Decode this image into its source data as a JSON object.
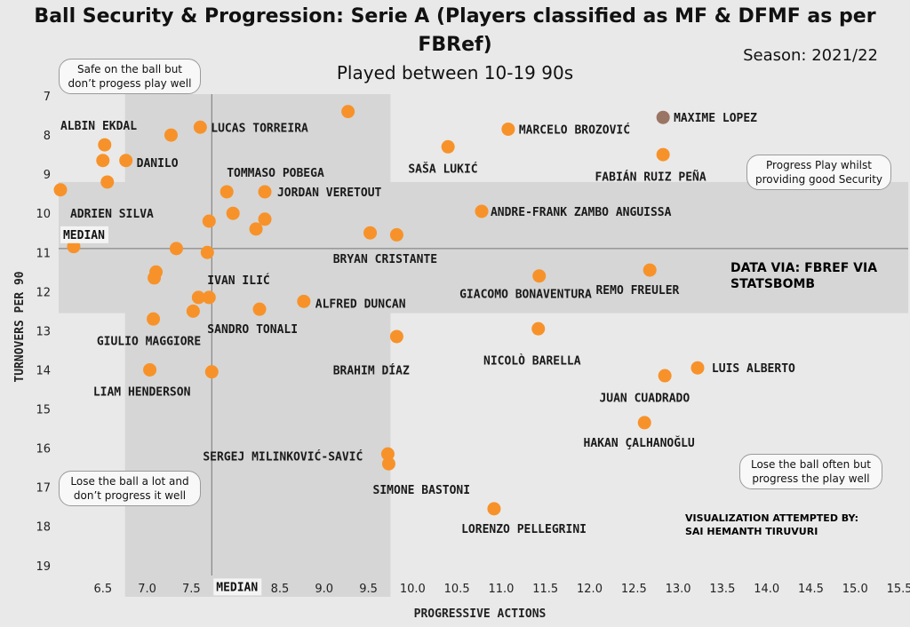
{
  "header": {
    "title_line1": "Ball Security & Progression: Serie A (Players classified as MF & DFMF as per",
    "title_line2": "FBRef)",
    "subtitle": "Played between 10-19 90s",
    "season": "Season: 2021/22"
  },
  "annotations": {
    "top_left": [
      "Safe on the ball but",
      "don’t progess play well"
    ],
    "top_right": [
      "Progress Play whilst",
      "providing good Security"
    ],
    "bottom_left": [
      "Lose the ball a lot and",
      "don’t progress it well"
    ],
    "bottom_right": [
      "Lose the ball often but",
      "progress the play well"
    ],
    "data_via": [
      "DATA VIA: FBREF VIA",
      "STATSBOMB"
    ],
    "credit": [
      "VISUALIZATION ATTEMPTED BY:",
      "SAI HEMANTH TIRUVURI"
    ]
  },
  "colors": {
    "point": "#f7922a",
    "highlight_point": "#9a7563",
    "band": "#d6d6d6",
    "background": "#e9e9e9"
  },
  "chart_data": {
    "type": "scatter",
    "xlabel": "PROGRESSIVE ACTIONS",
    "ylabel": "TURNOVERS PER 90",
    "xlim": [
      6.0,
      15.6
    ],
    "ylim": [
      7.0,
      19.8
    ],
    "y_inverted": true,
    "x_ticks": [
      6.5,
      7.0,
      7.5,
      8.0,
      8.5,
      9.0,
      9.5,
      10.0,
      10.5,
      11.0,
      11.5,
      12.0,
      12.5,
      13.0,
      13.5,
      14.0,
      14.5,
      15.0,
      15.5
    ],
    "x_tick_labels": [
      "6.5",
      "7.0",
      "7.5",
      "8.0",
      "8.5",
      "9.0",
      "9.5",
      "10.0",
      "10.5",
      "11.0",
      "11.5",
      "12.0",
      "12.5",
      "13.0",
      "13.5",
      "14.0",
      "14.5",
      "15.0",
      "15.5"
    ],
    "y_ticks": [
      7,
      8,
      9,
      10,
      11,
      12,
      13,
      14,
      15,
      16,
      17,
      18,
      19
    ],
    "y_tick_labels": [
      "7",
      "8",
      "9",
      "10",
      "11",
      "12",
      "13",
      "14",
      "15",
      "16",
      "17",
      "18",
      "19"
    ],
    "median_x": 7.73,
    "median_y": 10.9,
    "x_band": [
      6.75,
      9.75
    ],
    "y_band": [
      9.2,
      12.55
    ],
    "median_x_label": "MEDIAN",
    "median_y_label": "MEDIAN",
    "points": [
      {
        "x": 9.27,
        "y": 7.4
      },
      {
        "x": 11.08,
        "y": 7.85
      },
      {
        "x": 12.83,
        "y": 7.55,
        "highlight": true
      },
      {
        "x": 7.6,
        "y": 7.8
      },
      {
        "x": 7.27,
        "y": 8.0
      },
      {
        "x": 6.52,
        "y": 8.25
      },
      {
        "x": 10.4,
        "y": 8.3
      },
      {
        "x": 12.83,
        "y": 8.5
      },
      {
        "x": 6.5,
        "y": 8.65
      },
      {
        "x": 6.76,
        "y": 8.65
      },
      {
        "x": 6.55,
        "y": 9.2
      },
      {
        "x": 6.02,
        "y": 9.4
      },
      {
        "x": 7.9,
        "y": 9.45
      },
      {
        "x": 8.33,
        "y": 9.45
      },
      {
        "x": 10.78,
        "y": 9.95
      },
      {
        "x": 7.97,
        "y": 10.0
      },
      {
        "x": 8.33,
        "y": 10.15
      },
      {
        "x": 7.7,
        "y": 10.2
      },
      {
        "x": 8.23,
        "y": 10.4
      },
      {
        "x": 9.52,
        "y": 10.5
      },
      {
        "x": 9.82,
        "y": 10.55
      },
      {
        "x": 6.22,
        "y": 10.5
      },
      {
        "x": 6.17,
        "y": 10.85
      },
      {
        "x": 7.33,
        "y": 10.9
      },
      {
        "x": 7.68,
        "y": 11.0
      },
      {
        "x": 7.1,
        "y": 11.5
      },
      {
        "x": 7.08,
        "y": 11.65
      },
      {
        "x": 11.43,
        "y": 11.6
      },
      {
        "x": 12.68,
        "y": 11.45
      },
      {
        "x": 7.58,
        "y": 12.15
      },
      {
        "x": 7.7,
        "y": 12.15
      },
      {
        "x": 8.77,
        "y": 12.25
      },
      {
        "x": 8.27,
        "y": 12.45
      },
      {
        "x": 7.52,
        "y": 12.5
      },
      {
        "x": 7.07,
        "y": 12.7
      },
      {
        "x": 11.42,
        "y": 12.95
      },
      {
        "x": 9.82,
        "y": 13.15
      },
      {
        "x": 7.03,
        "y": 14.0
      },
      {
        "x": 7.73,
        "y": 14.05
      },
      {
        "x": 13.22,
        "y": 13.95
      },
      {
        "x": 12.85,
        "y": 14.15
      },
      {
        "x": 12.62,
        "y": 15.35
      },
      {
        "x": 9.72,
        "y": 16.15
      },
      {
        "x": 9.73,
        "y": 16.4
      },
      {
        "x": 10.92,
        "y": 17.55
      }
    ],
    "labels": [
      {
        "text": "ALBIN EKDAL",
        "x": 6.02,
        "y": 7.75
      },
      {
        "text": "LUCAS TORREIRA",
        "x": 7.72,
        "y": 7.8
      },
      {
        "text": "MARCELO BROZOVIĆ",
        "x": 11.2,
        "y": 7.85
      },
      {
        "text": "MAXIME LOPEZ",
        "x": 12.95,
        "y": 7.55
      },
      {
        "text": "DANILO",
        "x": 6.88,
        "y": 8.7
      },
      {
        "text": "SAŠA LUKIĆ",
        "x": 9.95,
        "y": 8.85
      },
      {
        "text": "FABIÁN RUIZ PEÑA",
        "x": 12.06,
        "y": 9.05
      },
      {
        "text": "TOMMASO POBEGA",
        "x": 7.9,
        "y": 8.95
      },
      {
        "text": "JORDAN VERETOUT",
        "x": 8.47,
        "y": 9.45
      },
      {
        "text": "ADRIEN SILVA",
        "x": 6.13,
        "y": 10.0
      },
      {
        "text": "ANDRE-FRANK ZAMBO ANGUISSA",
        "x": 10.88,
        "y": 9.95
      },
      {
        "text": "MEDIAN",
        "x": 6.04,
        "y": 10.65,
        "median": true
      },
      {
        "text": "BRYAN CRISTANTE",
        "x": 9.1,
        "y": 11.15
      },
      {
        "text": "IVAN ILIĆ",
        "x": 7.68,
        "y": 11.7
      },
      {
        "text": "GIACOMO BONAVENTURA",
        "x": 10.53,
        "y": 12.05
      },
      {
        "text": "REMO FREULER",
        "x": 12.07,
        "y": 11.95
      },
      {
        "text": "ALFRED DUNCAN",
        "x": 8.9,
        "y": 12.3
      },
      {
        "text": "SANDRO TONALI",
        "x": 7.68,
        "y": 12.95
      },
      {
        "text": "GIULIO MAGGIORE",
        "x": 6.43,
        "y": 13.25
      },
      {
        "text": "NICOLÒ BARELLA",
        "x": 10.8,
        "y": 13.75
      },
      {
        "text": "BRAHIM DÍAZ",
        "x": 9.1,
        "y": 14.0
      },
      {
        "text": "LUIS ALBERTO",
        "x": 13.38,
        "y": 13.95
      },
      {
        "text": "LIAM HENDERSON",
        "x": 6.39,
        "y": 14.55
      },
      {
        "text": "JUAN CUADRADO",
        "x": 12.11,
        "y": 14.7
      },
      {
        "text": "HAKAN ÇALHANOĞLU",
        "x": 11.93,
        "y": 15.85
      },
      {
        "text": "SERGEJ MILINKOVIĆ-SAVIĆ",
        "x": 7.63,
        "y": 16.2
      },
      {
        "text": "SIMONE BASTONI",
        "x": 9.55,
        "y": 17.05
      },
      {
        "text": "LORENZO PELLEGRINI",
        "x": 10.55,
        "y": 18.05
      },
      {
        "text": "MEDIAN",
        "x": 7.77,
        "y": 19.65,
        "median": true
      }
    ]
  }
}
